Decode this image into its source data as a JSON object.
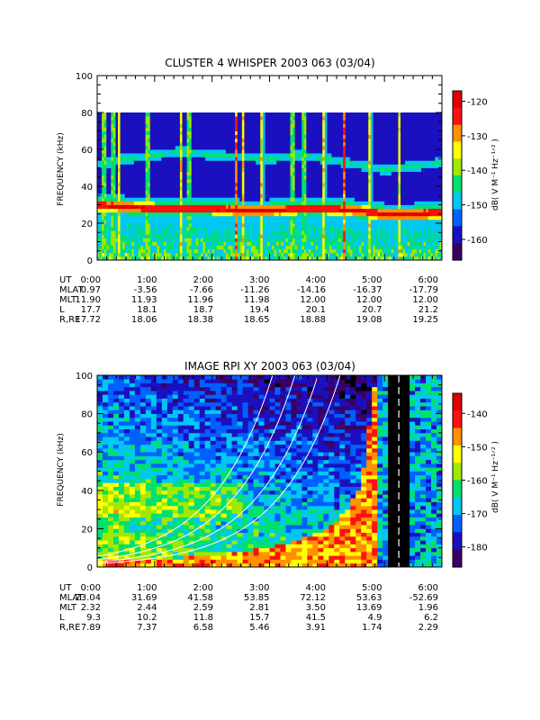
{
  "chart_data": [
    {
      "type": "heatmap",
      "title": "CLUSTER 4 WHISPER 2003 063 (03/04)",
      "ylabel": "FREQUENCY (kHz)",
      "ylim": [
        0,
        100
      ],
      "yticks": [
        "0",
        "20",
        "40",
        "60",
        "80",
        "100"
      ],
      "colorbar": {
        "label": "dB( V M⁻¹ Hz⁻¹ᐟ² )",
        "range": [
          -166,
          -117
        ],
        "ticks": [
          "-120",
          "-130",
          "-140",
          "-150",
          "-160"
        ]
      },
      "data_top_khz": 80,
      "x_ticks": [
        "0:00",
        "1:00",
        "2:00",
        "3:00",
        "4:00",
        "5:00",
        "6:00"
      ],
      "ephemeris": {
        "labels": [
          "UT",
          "MLAT",
          "MLT",
          "L",
          "R,RE"
        ],
        "values": [
          [
            "0:00",
            "1:00",
            "2:00",
            "3:00",
            "4:00",
            "5:00",
            "6:00"
          ],
          [
            "0.97",
            "-3.56",
            "-7.66",
            "-11.26",
            "-14.16",
            "-16.37",
            "-17.79"
          ],
          [
            "11.90",
            "11.93",
            "11.96",
            "11.98",
            "12.00",
            "12.00",
            "12.00"
          ],
          [
            "17.7",
            "18.1",
            "18.7",
            "19.4",
            "20.1",
            "20.7",
            "21.2"
          ],
          [
            "17.72",
            "18.06",
            "18.38",
            "18.65",
            "18.88",
            "19.08",
            "19.25"
          ]
        ]
      },
      "features": {
        "band_lower_khz": [
          30,
          29,
          28,
          28,
          28,
          27,
          27,
          28,
          28,
          27,
          25,
          25,
          26
        ],
        "band_upper_khz": [
          52,
          55,
          57,
          59,
          57,
          56,
          55,
          57,
          55,
          52,
          49,
          51,
          53
        ],
        "impulsive_events_ut_h": [
          0.12,
          0.28,
          0.37,
          0.88,
          1.45,
          1.6,
          2.42,
          2.55,
          2.87,
          3.4,
          3.6,
          3.95,
          4.3,
          4.75,
          5.25
        ]
      }
    },
    {
      "type": "heatmap",
      "title": "IMAGE RPI XY 2003 063 (03/04)",
      "ylabel": "FREQUENCY (kHz)",
      "ylim": [
        0,
        100
      ],
      "yticks": [
        "0",
        "20",
        "40",
        "60",
        "80",
        "100"
      ],
      "colorbar": {
        "label": "dB( V M⁻¹ Hz⁻¹ᐟ² )",
        "range": [
          -186,
          -134
        ],
        "ticks": [
          "-140",
          "-150",
          "-160",
          "-170",
          "-180"
        ]
      },
      "x_ticks": [
        "0:00",
        "1:00",
        "2:00",
        "3:00",
        "4:00",
        "5:00",
        "6:00"
      ],
      "ephemeris": {
        "labels": [
          "UT",
          "MLAT",
          "MLT",
          "L",
          "R,RE"
        ],
        "values": [
          [
            "0:00",
            "1:00",
            "2:00",
            "3:00",
            "4:00",
            "5:00",
            "6:00"
          ],
          [
            "23.04",
            "31.69",
            "41.58",
            "53.85",
            "72.12",
            "53.63",
            "-52.69"
          ],
          [
            "2.32",
            "2.44",
            "2.59",
            "2.81",
            "3.50",
            "13.69",
            "1.96"
          ],
          [
            "9.3",
            "10.2",
            "11.8",
            "15.7",
            "41.5",
            "4.9",
            "6.2"
          ],
          [
            "7.89",
            "7.37",
            "6.58",
            "5.46",
            "3.91",
            "1.74",
            "2.29"
          ]
        ]
      },
      "features": {
        "plasma_cutoff_ut_h": [
          0.0,
          1.0,
          2.0,
          3.0,
          3.5,
          4.0,
          4.3,
          4.6,
          4.85
        ],
        "plasma_cutoff_khz": [
          3,
          4,
          6,
          10,
          14,
          20,
          28,
          42,
          100
        ],
        "data_gap_ut_h": [
          5.05,
          5.45
        ],
        "overlay_curves_scale_khz": [
          1.8,
          2.6,
          3.8,
          5.5
        ],
        "overlay_curves_reference_ut_h": 4.85
      }
    }
  ],
  "colors": {
    "scale": [
      "#3a0066",
      "#1b10c0",
      "#0060ff",
      "#00c8f0",
      "#00e070",
      "#a0e800",
      "#ffff00",
      "#ff9000",
      "#ff1010",
      "#e00000"
    ],
    "overlay": "#ffffff",
    "missing": "#000000"
  }
}
